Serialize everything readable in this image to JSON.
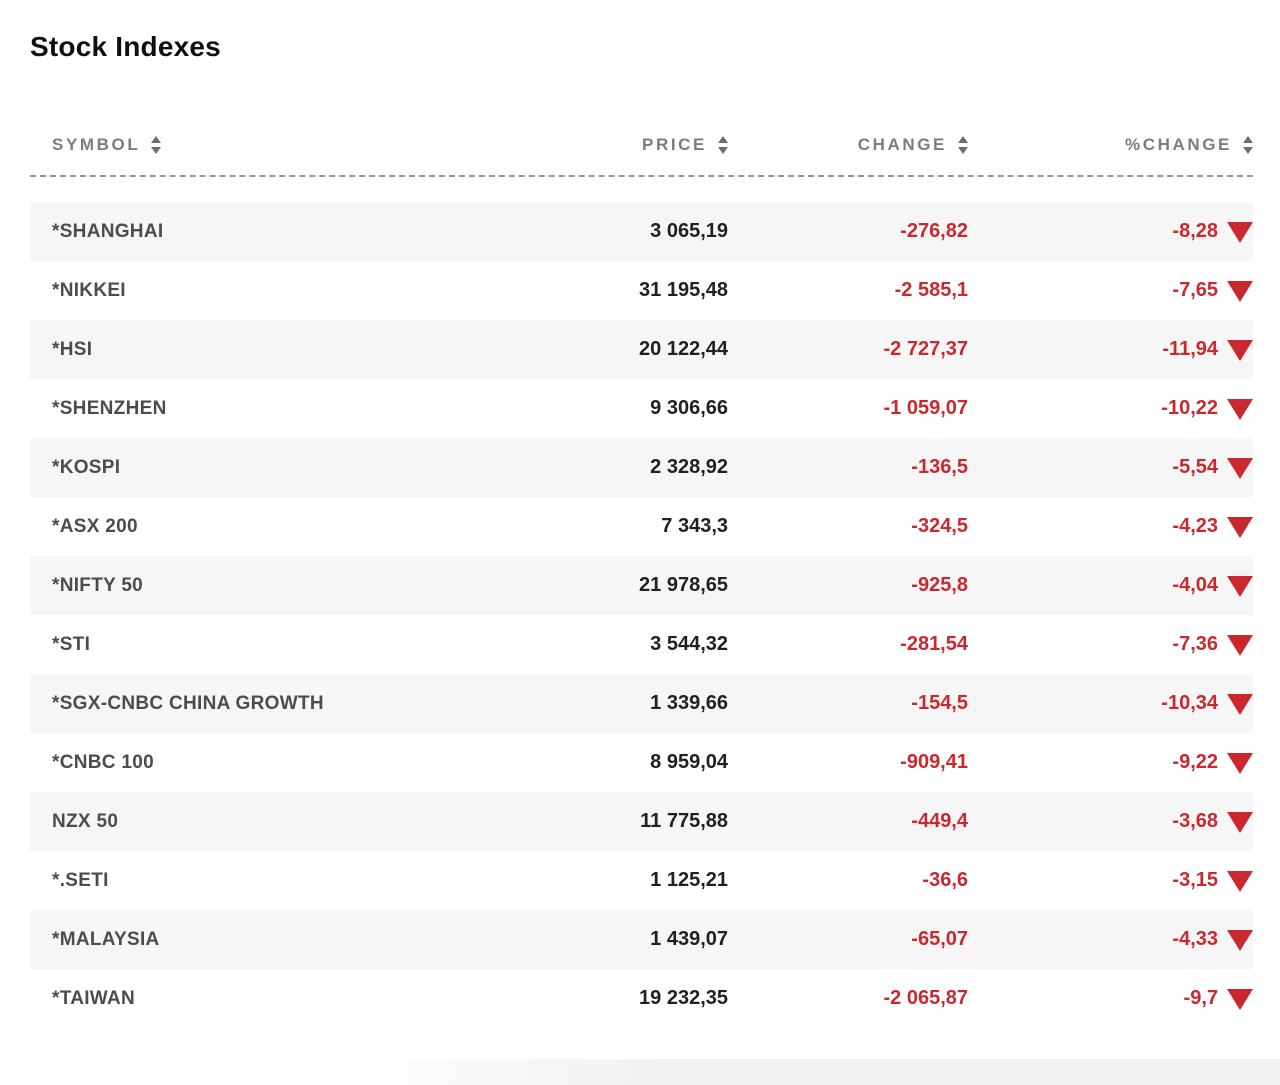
{
  "title": "Stock Indexes",
  "columns": [
    {
      "key": "symbol",
      "label": "SYMBOL"
    },
    {
      "key": "price",
      "label": "PRICE"
    },
    {
      "key": "change",
      "label": "CHANGE"
    },
    {
      "key": "pct_change",
      "label": "%CHANGE"
    }
  ],
  "colors": {
    "negative": "#c9292e",
    "price_text": "#1d2024",
    "symbol_text": "#4b4c4d",
    "header_text": "#7c7c7c",
    "row_alt_bg": "#f5f6f5"
  },
  "rows": [
    {
      "symbol": "*SHANGHAI",
      "price": "3 065,19",
      "change": "-276,82",
      "pct_change": "-8,28",
      "direction": "down"
    },
    {
      "symbol": "*NIKKEI",
      "price": "31 195,48",
      "change": "-2 585,1",
      "pct_change": "-7,65",
      "direction": "down"
    },
    {
      "symbol": "*HSI",
      "price": "20 122,44",
      "change": "-2 727,37",
      "pct_change": "-11,94",
      "direction": "down"
    },
    {
      "symbol": "*SHENZHEN",
      "price": "9 306,66",
      "change": "-1 059,07",
      "pct_change": "-10,22",
      "direction": "down"
    },
    {
      "symbol": "*KOSPI",
      "price": "2 328,92",
      "change": "-136,5",
      "pct_change": "-5,54",
      "direction": "down"
    },
    {
      "symbol": "*ASX 200",
      "price": "7 343,3",
      "change": "-324,5",
      "pct_change": "-4,23",
      "direction": "down"
    },
    {
      "symbol": "*NIFTY 50",
      "price": "21 978,65",
      "change": "-925,8",
      "pct_change": "-4,04",
      "direction": "down"
    },
    {
      "symbol": "*STI",
      "price": "3 544,32",
      "change": "-281,54",
      "pct_change": "-7,36",
      "direction": "down"
    },
    {
      "symbol": "*SGX-CNBC CHINA GROWTH",
      "price": "1 339,66",
      "change": "-154,5",
      "pct_change": "-10,34",
      "direction": "down"
    },
    {
      "symbol": "*CNBC 100",
      "price": "8 959,04",
      "change": "-909,41",
      "pct_change": "-9,22",
      "direction": "down"
    },
    {
      "symbol": "NZX 50",
      "price": "11 775,88",
      "change": "-449,4",
      "pct_change": "-3,68",
      "direction": "down"
    },
    {
      "symbol": "*.SETI",
      "price": "1 125,21",
      "change": "-36,6",
      "pct_change": "-3,15",
      "direction": "down"
    },
    {
      "symbol": "*MALAYSIA",
      "price": "1 439,07",
      "change": "-65,07",
      "pct_change": "-4,33",
      "direction": "down"
    },
    {
      "symbol": "*TAIWAN",
      "price": "19 232,35",
      "change": "-2 065,87",
      "pct_change": "-9,7",
      "direction": "down"
    }
  ]
}
